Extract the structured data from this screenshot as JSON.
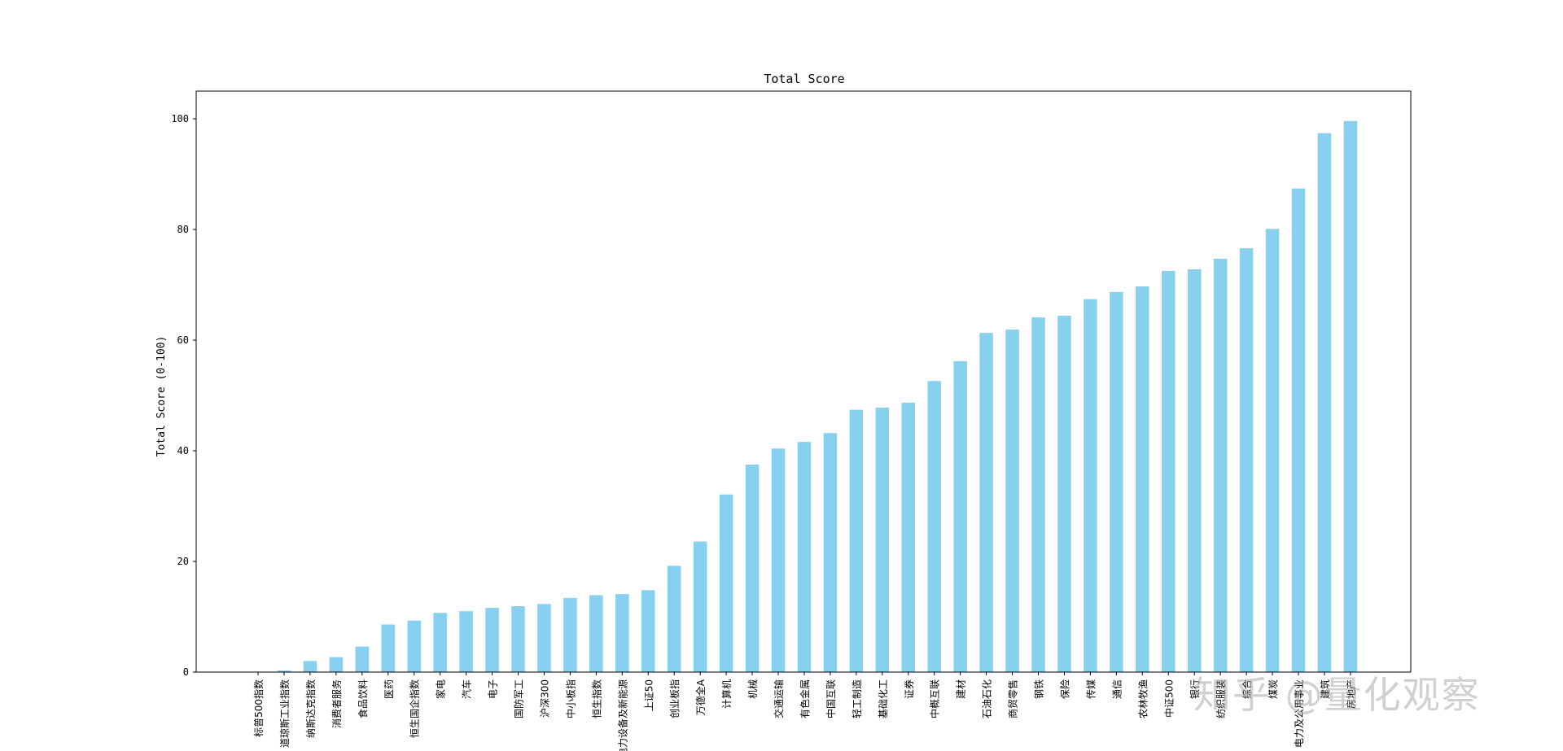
{
  "chart_data": {
    "type": "bar",
    "title": "Total Score",
    "xlabel": "",
    "ylabel": "Total Score (0-100)",
    "ylim": [
      0,
      105
    ],
    "yticks": [
      0,
      20,
      40,
      60,
      80,
      100
    ],
    "grid": false,
    "bar_color": "#89cff0",
    "categories": [
      "标普500指数",
      "道琼斯工业指数",
      "纳斯达克指数",
      "消费者服务",
      "食品饮料",
      "医药",
      "恒生国企指数",
      "家电",
      "汽车",
      "电子",
      "国防军工",
      "沪深300",
      "中小板指",
      "恒生指数",
      "电力设备及新能源",
      "上证50",
      "创业板指",
      "万德全A",
      "计算机",
      "机械",
      "交通运输",
      "有色金属",
      "中国互联",
      "轻工制造",
      "基础化工",
      "证券",
      "中概互联",
      "建材",
      "石油石化",
      "商贸零售",
      "钢铁",
      "保险",
      "传媒",
      "通信",
      "农林牧渔",
      "中证500",
      "银行",
      "纺织服装",
      "综合",
      "煤炭",
      "电力及公用事业",
      "建筑",
      "房地产"
    ],
    "values": [
      0,
      0.3,
      2,
      2.7,
      4.6,
      8.6,
      9.3,
      10.7,
      11,
      11.6,
      11.9,
      12.3,
      13.4,
      13.9,
      14.1,
      14.8,
      19.2,
      23.6,
      32.1,
      37.5,
      40.4,
      41.6,
      43.2,
      47.4,
      47.8,
      48.7,
      52.6,
      56.2,
      61.3,
      61.9,
      64.1,
      64.4,
      67.4,
      68.7,
      69.7,
      72.5,
      72.8,
      74.7,
      76.6,
      80.1,
      87.4,
      97.4,
      99.6
    ]
  },
  "watermark": "知乎 @量化观察"
}
